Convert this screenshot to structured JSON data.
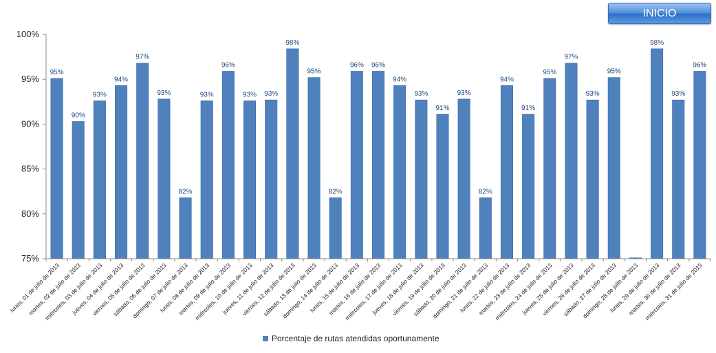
{
  "button": {
    "label": "INICIO"
  },
  "chart_data": {
    "type": "bar",
    "title": "",
    "xlabel": "",
    "ylabel": "",
    "ylim": [
      0.75,
      1.0
    ],
    "yticks": [
      "75%",
      "80%",
      "85%",
      "90%",
      "95%",
      "100%"
    ],
    "grid": false,
    "legend_position": "bottom",
    "bar_color": "#4f81bd",
    "label_color": "#1f497d",
    "categories": [
      "lunes, 01 de julio de 2013",
      "martes, 02 de julio de 2013",
      "miércoles, 03 de julio de 2013",
      "jueves, 04 de julio de 2013",
      "viernes, 05 de julio de 2013",
      "sábado, 06 de julio de 2013",
      "domingo, 07 de julio de 2013",
      "lunes, 08 de julio de 2013",
      "martes, 09 de julio de 2013",
      "miércoles, 10 de julio de 2013",
      "jueves, 11 de julio de 2013",
      "viernes, 12 de julio de 2013",
      "sábado, 13 de julio de 2013",
      "domingo, 14 de julio de 2013",
      "lunes, 15 de julio de 2013",
      "martes, 16 de julio de 2013",
      "miércoles, 17 de julio de 2013",
      "jueves, 18 de julio de 2013",
      "viernes, 19 de julio de 2013",
      "sábado, 20 de julio de 2013",
      "domingo, 21 de julio de 2013",
      "lunes, 22 de julio de 2013",
      "martes, 23 de julio de 2013",
      "miércoles, 24 de julio de 2013",
      "jueves, 25 de julio de 2013",
      "viernes, 26 de julio de 2013",
      "sábado, 27 de julio de 2013",
      "domingo, 28 de julio de 2013",
      "lunes, 29 de julio de 2013",
      "martes, 30 de julio de 2013",
      "miércoles, 31 de julio de 2013"
    ],
    "series": [
      {
        "name": "Porcentaje de rutas atendidas oportunamente",
        "values": [
          0.951,
          0.903,
          0.926,
          0.943,
          0.968,
          0.928,
          0.818,
          0.926,
          0.959,
          0.926,
          0.927,
          0.984,
          0.952,
          0.818,
          0.959,
          0.959,
          0.943,
          0.927,
          0.911,
          0.928,
          0.818,
          0.943,
          0.911,
          0.951,
          0.968,
          0.927,
          0.952,
          null,
          0.984,
          0.927,
          0.959
        ],
        "labels": [
          "95%",
          "90%",
          "93%",
          "94%",
          "97%",
          "93%",
          "82%",
          "93%",
          "96%",
          "93%",
          "93%",
          "98%",
          "95%",
          "82%",
          "96%",
          "96%",
          "94%",
          "93%",
          "91%",
          "93%",
          "82%",
          "94%",
          "91%",
          "95%",
          "97%",
          "93%",
          "95%",
          "",
          "98%",
          "93%",
          "96%"
        ]
      }
    ]
  }
}
